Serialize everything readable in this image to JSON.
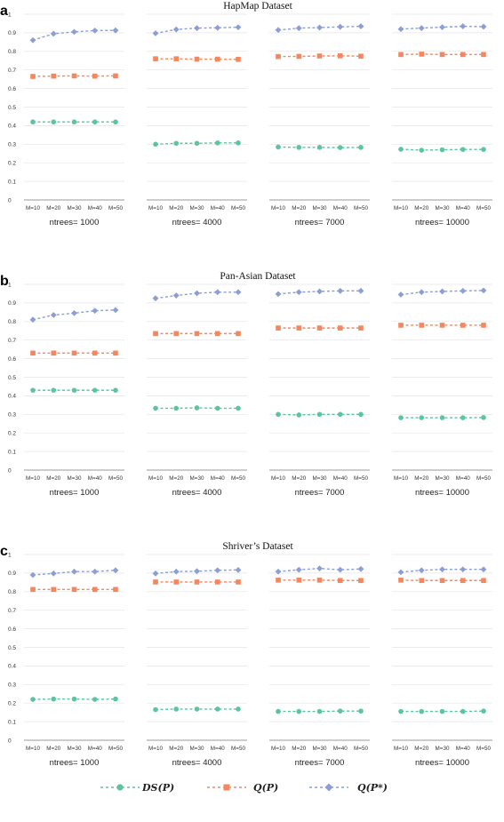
{
  "chart_data": [
    {
      "type": "line",
      "letter": "a",
      "title": "HapMap Dataset",
      "ylim": [
        0,
        1
      ],
      "yticks": [
        "0",
        "0.1",
        "0.2",
        "0.3",
        "0.4",
        "0.5",
        "0.6",
        "0.7",
        "0.8",
        "0.9",
        "1"
      ],
      "categories": [
        "M=10",
        "M=20",
        "M=30",
        "M=40",
        "M=50"
      ],
      "groups": [
        {
          "label": "ntrees= 1000",
          "series": [
            {
              "name": "DS(P)",
              "values": [
                0.42,
                0.42,
                0.42,
                0.42,
                0.42
              ]
            },
            {
              "name": "Q(P)",
              "values": [
                0.665,
                0.667,
                0.668,
                0.667,
                0.668
              ]
            },
            {
              "name": "Q(P*)",
              "values": [
                0.86,
                0.895,
                0.905,
                0.912,
                0.913
              ]
            }
          ]
        },
        {
          "label": "ntrees= 4000",
          "series": [
            {
              "name": "DS(P)",
              "values": [
                0.3,
                0.305,
                0.305,
                0.307,
                0.307
              ]
            },
            {
              "name": "Q(P)",
              "values": [
                0.76,
                0.76,
                0.758,
                0.758,
                0.757
              ]
            },
            {
              "name": "Q(P*)",
              "values": [
                0.897,
                0.918,
                0.925,
                0.927,
                0.93
              ]
            }
          ]
        },
        {
          "label": "ntrees= 7000",
          "series": [
            {
              "name": "DS(P)",
              "values": [
                0.285,
                0.283,
                0.283,
                0.282,
                0.283
              ]
            },
            {
              "name": "Q(P)",
              "values": [
                0.772,
                0.773,
                0.775,
                0.776,
                0.774
              ]
            },
            {
              "name": "Q(P*)",
              "values": [
                0.915,
                0.925,
                0.928,
                0.932,
                0.935
              ]
            }
          ]
        },
        {
          "label": "ntrees= 10000",
          "series": [
            {
              "name": "DS(P)",
              "values": [
                0.273,
                0.268,
                0.27,
                0.272,
                0.272
              ]
            },
            {
              "name": "Q(P)",
              "values": [
                0.783,
                0.785,
                0.783,
                0.783,
                0.783
              ]
            },
            {
              "name": "Q(P*)",
              "values": [
                0.92,
                0.925,
                0.93,
                0.935,
                0.933
              ]
            }
          ]
        }
      ]
    },
    {
      "type": "line",
      "letter": "b",
      "title": "Pan-Asian Dataset",
      "ylim": [
        0,
        1
      ],
      "yticks": [
        "0",
        "0.1",
        "0.2",
        "0.3",
        "0.4",
        "0.5",
        "0.6",
        "0.7",
        "0.8",
        "0.9",
        "1"
      ],
      "categories": [
        "M=10",
        "M=20",
        "M=30",
        "M=40",
        "M=50"
      ],
      "groups": [
        {
          "label": "ntrees= 1000",
          "series": [
            {
              "name": "DS(P)",
              "values": [
                0.43,
                0.43,
                0.43,
                0.43,
                0.43
              ]
            },
            {
              "name": "Q(P)",
              "values": [
                0.63,
                0.63,
                0.63,
                0.63,
                0.63
              ]
            },
            {
              "name": "Q(P*)",
              "values": [
                0.81,
                0.835,
                0.845,
                0.858,
                0.862
              ]
            }
          ]
        },
        {
          "label": "ntrees= 4000",
          "series": [
            {
              "name": "DS(P)",
              "values": [
                0.333,
                0.333,
                0.335,
                0.333,
                0.333
              ]
            },
            {
              "name": "Q(P)",
              "values": [
                0.735,
                0.735,
                0.735,
                0.735,
                0.735
              ]
            },
            {
              "name": "Q(P*)",
              "values": [
                0.925,
                0.94,
                0.952,
                0.958,
                0.958
              ]
            }
          ]
        },
        {
          "label": "ntrees= 7000",
          "series": [
            {
              "name": "DS(P)",
              "values": [
                0.3,
                0.297,
                0.3,
                0.3,
                0.3
              ]
            },
            {
              "name": "Q(P)",
              "values": [
                0.765,
                0.765,
                0.765,
                0.765,
                0.765
              ]
            },
            {
              "name": "Q(P*)",
              "values": [
                0.948,
                0.958,
                0.962,
                0.965,
                0.965
              ]
            }
          ]
        },
        {
          "label": "ntrees= 10000",
          "series": [
            {
              "name": "DS(P)",
              "values": [
                0.282,
                0.282,
                0.282,
                0.282,
                0.283
              ]
            },
            {
              "name": "Q(P)",
              "values": [
                0.78,
                0.78,
                0.78,
                0.78,
                0.78
              ]
            },
            {
              "name": "Q(P*)",
              "values": [
                0.945,
                0.958,
                0.962,
                0.965,
                0.967
              ]
            }
          ]
        }
      ]
    },
    {
      "type": "line",
      "letter": "c",
      "title": "Shriver’s Dataset",
      "ylim": [
        0,
        1
      ],
      "yticks": [
        "0",
        "0.1",
        "0.2",
        "0.3",
        "0.4",
        "0.5",
        "0.6",
        "0.7",
        "0.8",
        "0.9",
        "1"
      ],
      "categories": [
        "M=10",
        "M=20",
        "M=30",
        "M=40",
        "M=50"
      ],
      "groups": [
        {
          "label": "ntrees= 1000",
          "series": [
            {
              "name": "DS(P)",
              "values": [
                0.22,
                0.222,
                0.222,
                0.22,
                0.222
              ]
            },
            {
              "name": "Q(P)",
              "values": [
                0.812,
                0.812,
                0.812,
                0.812,
                0.812
              ]
            },
            {
              "name": "Q(P*)",
              "values": [
                0.89,
                0.898,
                0.908,
                0.908,
                0.915
              ]
            }
          ]
        },
        {
          "label": "ntrees= 4000",
          "series": [
            {
              "name": "DS(P)",
              "values": [
                0.165,
                0.168,
                0.168,
                0.168,
                0.168
              ]
            },
            {
              "name": "Q(P)",
              "values": [
                0.852,
                0.852,
                0.852,
                0.852,
                0.852
              ]
            },
            {
              "name": "Q(P*)",
              "values": [
                0.898,
                0.908,
                0.91,
                0.915,
                0.917
              ]
            }
          ]
        },
        {
          "label": "ntrees= 7000",
          "series": [
            {
              "name": "DS(P)",
              "values": [
                0.155,
                0.155,
                0.155,
                0.157,
                0.157
              ]
            },
            {
              "name": "Q(P)",
              "values": [
                0.862,
                0.862,
                0.862,
                0.86,
                0.86
              ]
            },
            {
              "name": "Q(P*)",
              "values": [
                0.908,
                0.918,
                0.925,
                0.918,
                0.922
              ]
            }
          ]
        },
        {
          "label": "ntrees= 10000",
          "series": [
            {
              "name": "DS(P)",
              "values": [
                0.155,
                0.155,
                0.155,
                0.155,
                0.157
              ]
            },
            {
              "name": "Q(P)",
              "values": [
                0.862,
                0.86,
                0.86,
                0.86,
                0.86
              ]
            },
            {
              "name": "Q(P*)",
              "values": [
                0.905,
                0.915,
                0.92,
                0.92,
                0.92
              ]
            }
          ]
        }
      ]
    }
  ],
  "legend": {
    "placement": "bottom",
    "items": [
      {
        "name": "DS(P)",
        "color": "#5cc4a0",
        "marker": "circle"
      },
      {
        "name": "Q(P)",
        "color": "#f4875e",
        "marker": "square"
      },
      {
        "name": "Q(P*)",
        "color": "#8c9ed4",
        "marker": "diamond"
      }
    ]
  },
  "colors": {
    "DS(P)": "#5cc4a0",
    "Q(P)": "#f4875e",
    "Q(P*)": "#8c9ed4",
    "grid": "#e4e4e4"
  }
}
